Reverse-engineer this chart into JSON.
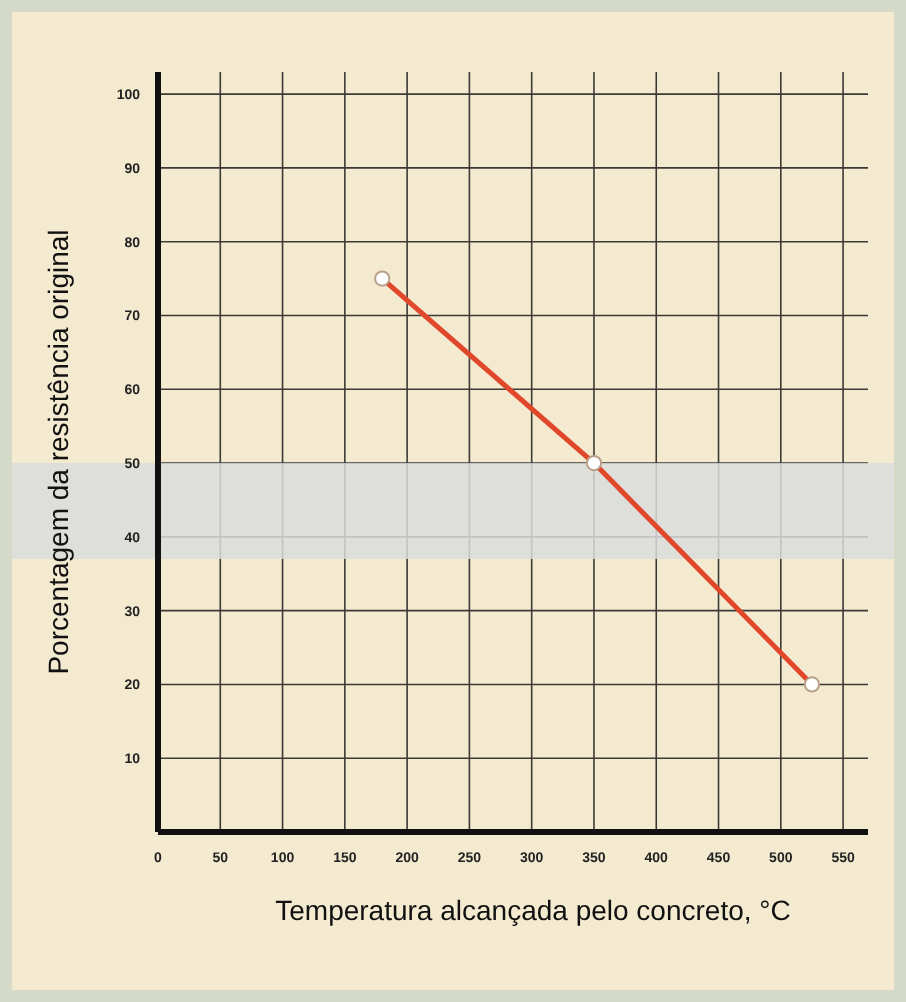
{
  "chart_data": {
    "type": "line",
    "xlabel": "Temperatura alcançada pelo concreto, °C",
    "ylabel": "Porcentagem da resistência original",
    "x": [
      180,
      350,
      525
    ],
    "series": [
      {
        "color": "#e0472b",
        "values": [
          75,
          50,
          20
        ]
      }
    ],
    "xlim": [
      0,
      570
    ],
    "xticks": [
      0,
      50,
      100,
      150,
      200,
      250,
      300,
      350,
      400,
      450,
      500,
      550
    ],
    "ylim": [
      0,
      103
    ],
    "yticks": [
      10,
      20,
      30,
      40,
      50,
      60,
      70,
      80,
      90,
      100
    ],
    "grid": true,
    "marker": "circle",
    "bands": [
      {
        "axis": "y",
        "from": 37,
        "to": 50,
        "color": "#d9dcdc"
      }
    ]
  }
}
